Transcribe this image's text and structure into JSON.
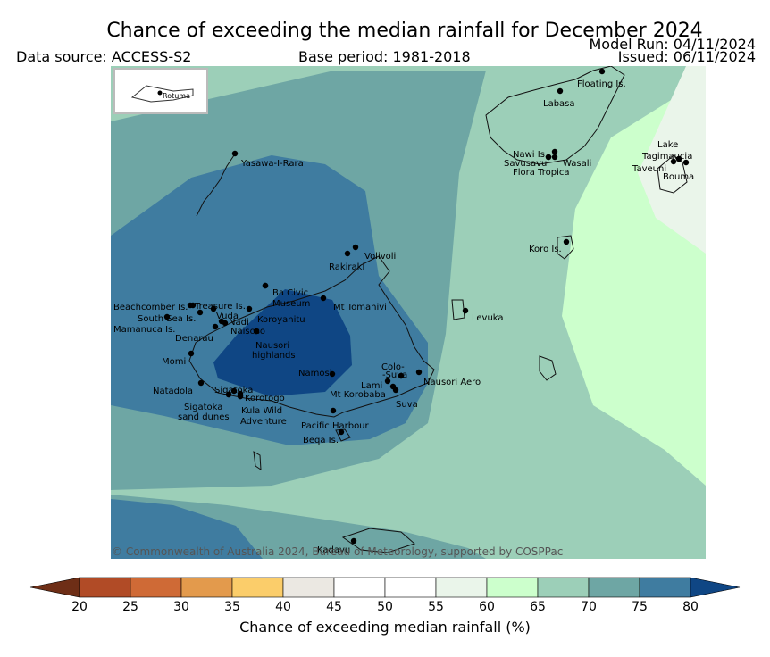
{
  "title": "Chance of exceeding the median rainfall for December 2024",
  "model_run": "Model Run: 04/11/2024",
  "issued": "Issued: 06/11/2024",
  "data_source": "Data source: ACCESS-S2",
  "base_period": "Base period: 1981-2018",
  "copyright": "© Commonwealth of Australia 2024, Bureau of Meteorology, supported by COSPPac",
  "inset_label": "Rotuma",
  "colorbar": {
    "label": "Chance of exceeding median rainfall (%)",
    "ticks": [
      "20",
      "25",
      "30",
      "35",
      "40",
      "45",
      "50",
      "55",
      "60",
      "65",
      "70",
      "75",
      "80"
    ],
    "colors": [
      "#6e2e16",
      "#b14b26",
      "#cf6a36",
      "#e39a4c",
      "#fbcd6a",
      "#ebe8e2",
      "#ffffff",
      "#ffffff",
      "#eaf5ea",
      "#ccffcc",
      "#9ccfb8",
      "#6ea6a4",
      "#3f7ca0",
      "#0f4684"
    ]
  },
  "places": [
    {
      "name": "Floating Is."
    },
    {
      "name": "Labasa"
    },
    {
      "name": "Nawi Is."
    },
    {
      "name": "Savusavu"
    },
    {
      "name": "Wasali"
    },
    {
      "name": "Flora Tropica"
    },
    {
      "name": "Lake"
    },
    {
      "name": "Tagimaucia"
    },
    {
      "name": "Taveuni"
    },
    {
      "name": "Bouma"
    },
    {
      "name": "Yasawa-I-Rara"
    },
    {
      "name": "Koro Is."
    },
    {
      "name": "Volivoli"
    },
    {
      "name": "Rakiraki"
    },
    {
      "name": "Ba Civic"
    },
    {
      "name": "Museum"
    },
    {
      "name": "Mt Tomanivi"
    },
    {
      "name": "Beachcomber Is."
    },
    {
      "name": "Treasure Is."
    },
    {
      "name": "South Sea Is."
    },
    {
      "name": "Vuda"
    },
    {
      "name": "Koroyanitu"
    },
    {
      "name": "Mamanuca Is."
    },
    {
      "name": "Nadi"
    },
    {
      "name": "Naisoso"
    },
    {
      "name": "Denarau"
    },
    {
      "name": "Nausori"
    },
    {
      "name": "highlands"
    },
    {
      "name": "Levuka"
    },
    {
      "name": "Momi"
    },
    {
      "name": "Colo-"
    },
    {
      "name": "I-Suva"
    },
    {
      "name": "Namosi"
    },
    {
      "name": "Nausori Aero"
    },
    {
      "name": "Lami"
    },
    {
      "name": "Natadola"
    },
    {
      "name": "Sigatoka"
    },
    {
      "name": "Mt Korobaba"
    },
    {
      "name": "Korotogo"
    },
    {
      "name": "Suva"
    },
    {
      "name": "Sigatoka"
    },
    {
      "name": "sand dunes"
    },
    {
      "name": "Kula Wild"
    },
    {
      "name": "Adventure"
    },
    {
      "name": "Pacific Harbour"
    },
    {
      "name": "Beqa Is."
    },
    {
      "name": "Kadavu"
    }
  ]
}
